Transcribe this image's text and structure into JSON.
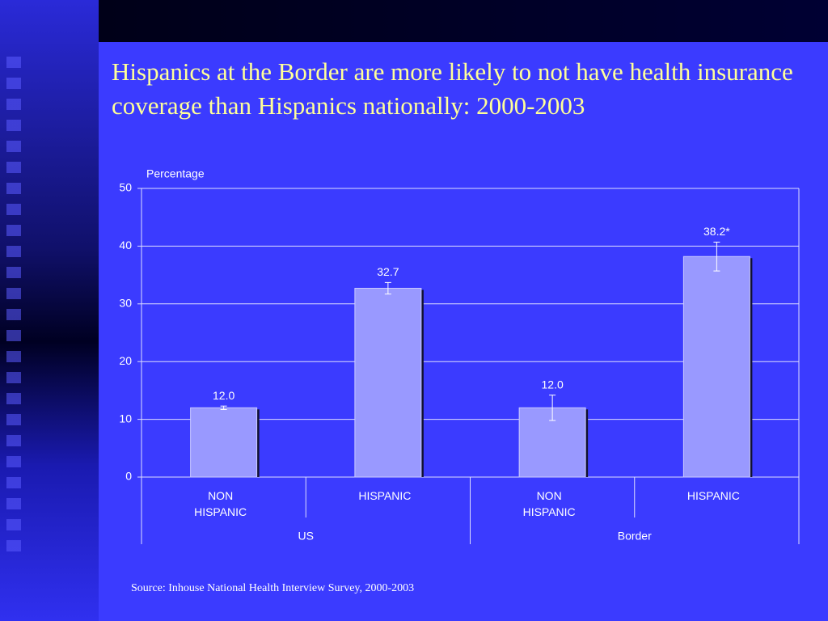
{
  "chart_data": {
    "type": "bar",
    "title": "Hispanics at the Border are more likely to not have health insurance coverage than Hispanics nationally: 2000-2003",
    "y_label": "Percentage",
    "categories": [
      "NON HISPANIC",
      "HISPANIC",
      "NON HISPANIC",
      "HISPANIC"
    ],
    "groups": [
      "US",
      "Border"
    ],
    "values": [
      12.0,
      32.7,
      12.0,
      38.2
    ],
    "value_labels": [
      "12.0",
      "32.7",
      "12.0",
      "38.2*"
    ],
    "errors": [
      0.3,
      1.0,
      2.2,
      2.5
    ],
    "color": "#9999ff",
    "ylim": [
      0,
      50
    ],
    "yticks": [
      0,
      10,
      20,
      30,
      40,
      50
    ],
    "grid": true,
    "source": "Source: Inhouse National Health Interview Survey, 2000-2003"
  }
}
